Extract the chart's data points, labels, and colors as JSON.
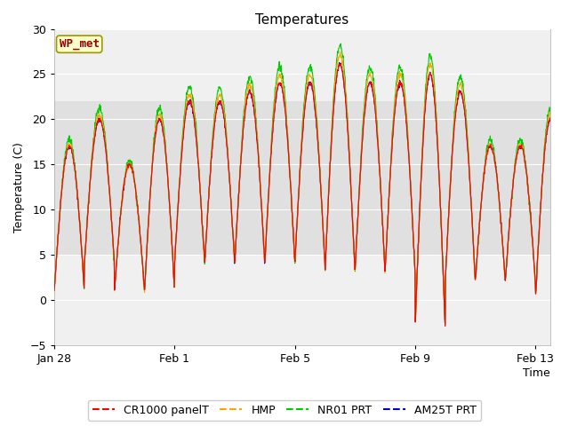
{
  "title": "Temperatures",
  "xlabel": "Time",
  "ylabel": "Temperature (C)",
  "annotation": "WP_met",
  "ylim": [
    -5,
    30
  ],
  "yticks": [
    -5,
    0,
    5,
    10,
    15,
    20,
    25,
    30
  ],
  "x_labels": [
    "Jan 28",
    "Feb 1",
    "Feb 5",
    "Feb 9",
    "Feb 13"
  ],
  "x_positions": [
    0,
    4,
    8,
    12,
    16
  ],
  "total_days": 16.5,
  "legend_entries": [
    "CR1000 panelT",
    "HMP",
    "NR01 PRT",
    "AM25T PRT"
  ],
  "line_colors": [
    "#ff0000",
    "#ffa500",
    "#00cc00",
    "#0000cc"
  ],
  "annotation_bg": "#ffffcc",
  "annotation_border": "#999900",
  "annotation_text_color": "#990000",
  "shaded_band_min": 5,
  "shaded_band_max": 22,
  "shaded_band_color": "#e0e0e0",
  "fig_bg": "#ffffff",
  "plot_bg": "#f0f0f0",
  "grid_color": "#ffffff"
}
